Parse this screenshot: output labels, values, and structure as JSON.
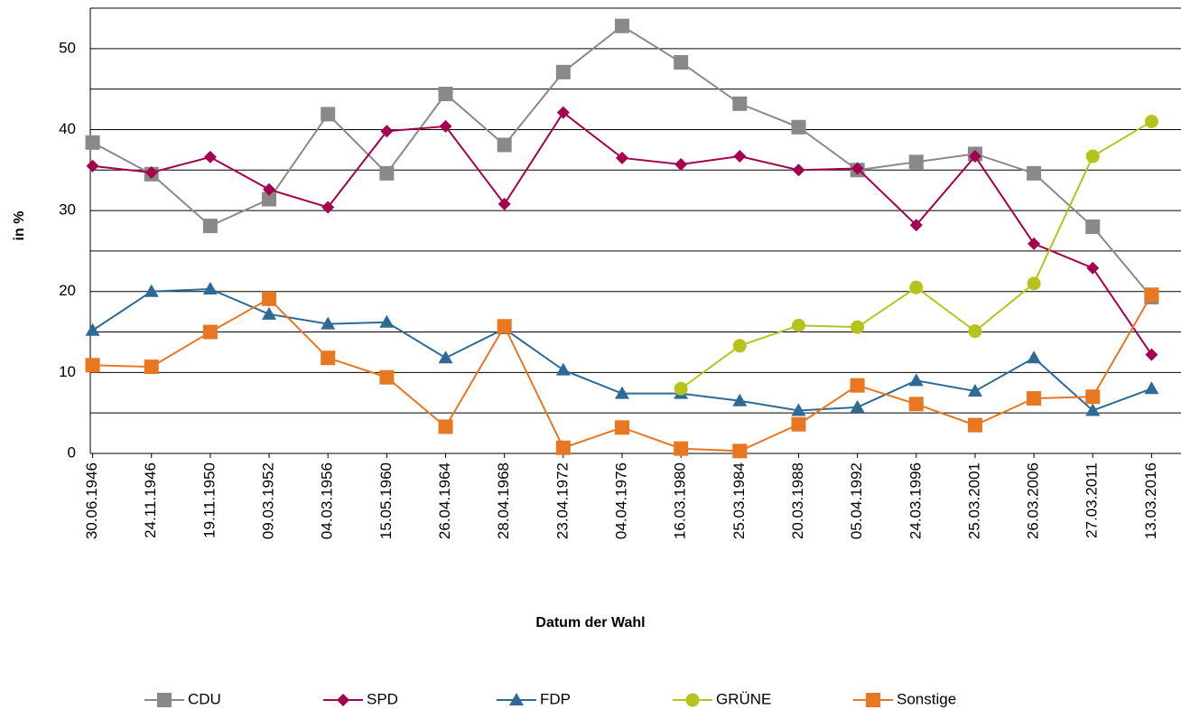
{
  "chart_data": {
    "type": "line",
    "xlabel": "Datum der Wahl",
    "ylabel": "in %",
    "categories": [
      "30.06.1946",
      "24.11.1946",
      "19.11.1950",
      "09.03.1952",
      "04.03.1956",
      "15.05.1960",
      "26.04.1964",
      "28.04.1968",
      "23.04.1972",
      "04.04.1976",
      "16.03.1980",
      "25.03.1984",
      "20.03.1988",
      "05.04.1992",
      "24.03.1996",
      "25.03.2001",
      "26.03.2006",
      "27.03.2011",
      "13.03.2016"
    ],
    "series": [
      {
        "name": "CDU",
        "color": "#898989",
        "marker": "square",
        "values": [
          38.4,
          34.5,
          28.1,
          31.4,
          41.9,
          34.6,
          44.4,
          38.1,
          47.1,
          52.8,
          48.3,
          43.2,
          40.3,
          35.0,
          36.0,
          37.0,
          34.6,
          28.0,
          19.3
        ]
      },
      {
        "name": "SPD",
        "color": "#a5004f",
        "marker": "diamond",
        "values": [
          35.5,
          34.7,
          36.6,
          32.6,
          30.4,
          39.8,
          40.4,
          30.8,
          42.1,
          36.5,
          35.7,
          36.7,
          35.0,
          35.2,
          28.2,
          36.7,
          25.9,
          22.9,
          12.2
        ]
      },
      {
        "name": "FDP",
        "color": "#2e6a96",
        "marker": "triangle",
        "values": [
          15.2,
          20.0,
          20.3,
          17.2,
          16.0,
          16.2,
          11.8,
          15.4,
          10.3,
          7.4,
          7.4,
          6.5,
          5.3,
          5.7,
          9.0,
          7.7,
          11.8,
          5.3,
          8.0
        ]
      },
      {
        "name": "GRÜNE",
        "color": "#b5c31c",
        "marker": "circle",
        "values": [
          null,
          null,
          null,
          null,
          null,
          null,
          null,
          null,
          null,
          null,
          8.0,
          13.3,
          15.8,
          15.6,
          20.5,
          15.1,
          21.0,
          36.7,
          41.0
        ]
      },
      {
        "name": "Sonstige",
        "color": "#e87722",
        "marker": "square",
        "values": [
          10.9,
          10.7,
          15.0,
          19.1,
          11.8,
          9.4,
          3.3,
          15.7,
          0.7,
          3.2,
          0.6,
          0.3,
          3.6,
          8.4,
          6.1,
          3.5,
          6.8,
          7.0,
          19.6
        ]
      }
    ],
    "ylim": [
      0,
      55
    ],
    "yticks": [
      0,
      10,
      20,
      30,
      40,
      50
    ],
    "minor_yticks": [
      5,
      15,
      25,
      35,
      45,
      55
    ],
    "grid": true,
    "legend": "bottom"
  }
}
